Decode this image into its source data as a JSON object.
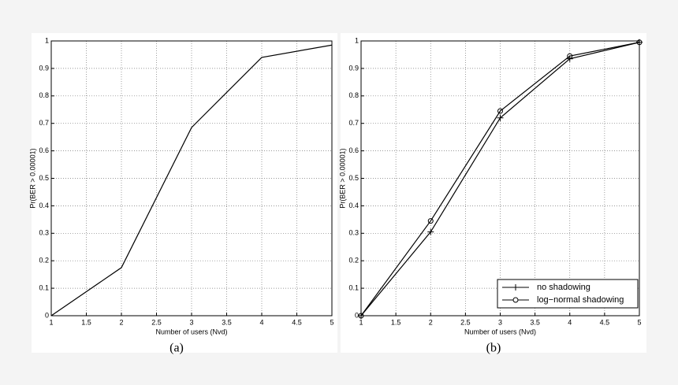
{
  "chart_data": [
    {
      "type": "line",
      "caption": "(a)",
      "xlabel": "Number of users (Nvd)",
      "ylabel": "Pr(BER > 0.00001)",
      "x": [
        1,
        2,
        3,
        4,
        5
      ],
      "series": [
        {
          "color": "#000000",
          "marker": "none",
          "values": [
            0,
            0.175,
            0.685,
            0.94,
            0.985
          ]
        }
      ],
      "xlim": [
        1,
        5
      ],
      "ylim": [
        0,
        1
      ],
      "xticks": [
        1,
        1.5,
        2,
        2.5,
        3,
        3.5,
        4,
        4.5,
        5
      ],
      "yticks": [
        0,
        0.1,
        0.2,
        0.3,
        0.4,
        0.5,
        0.6,
        0.7,
        0.8,
        0.9,
        1
      ],
      "grid": true
    },
    {
      "type": "line",
      "caption": "(b)",
      "xlabel": "Number of users (Nvd)",
      "ylabel": "Pr(BER > 0.00001)",
      "x": [
        1,
        2,
        3,
        4,
        5
      ],
      "series": [
        {
          "name": "no shadowing",
          "color": "#000000",
          "marker": "plus",
          "values": [
            0,
            0.305,
            0.72,
            0.935,
            0.995
          ]
        },
        {
          "name": "log−normal shadowing",
          "color": "#000000",
          "marker": "circle",
          "values": [
            0,
            0.345,
            0.745,
            0.945,
            0.995
          ]
        }
      ],
      "xlim": [
        1,
        5
      ],
      "ylim": [
        0,
        1
      ],
      "xticks": [
        1,
        1.5,
        2,
        2.5,
        3,
        3.5,
        4,
        4.5,
        5
      ],
      "yticks": [
        0,
        0.1,
        0.2,
        0.3,
        0.4,
        0.5,
        0.6,
        0.7,
        0.8,
        0.9,
        1
      ],
      "grid": true,
      "legend": "lower right"
    }
  ]
}
